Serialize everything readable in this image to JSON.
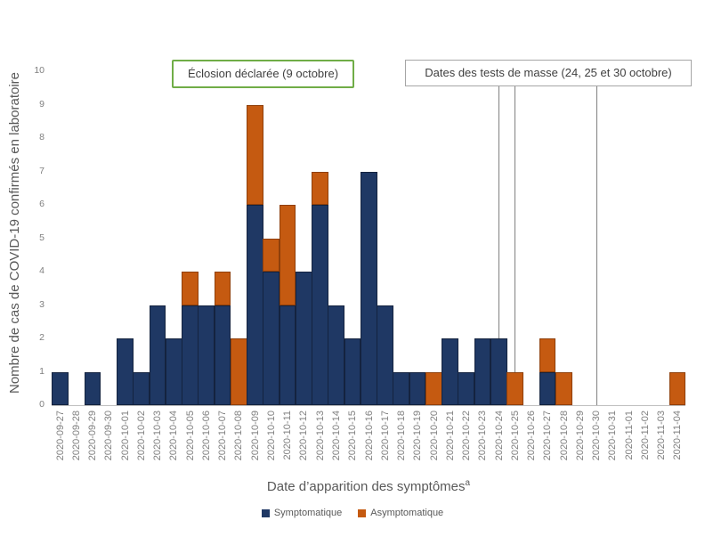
{
  "chart_data": {
    "type": "bar",
    "stacked": true,
    "title": "",
    "xlabel": "Date d’apparition des symptômes",
    "xlabel_superscript": "a",
    "ylabel": "Nombre de cas de COVID-19 confirmés en laboratoire",
    "ylim": [
      0,
      10
    ],
    "yticks": [
      0,
      1,
      2,
      3,
      4,
      5,
      6,
      7,
      8,
      9,
      10
    ],
    "grid": false,
    "legend_position": "bottom",
    "categories": [
      "2020-09-27",
      "2020-09-28",
      "2020-09-29",
      "2020-09-30",
      "2020-10-01",
      "2020-10-02",
      "2020-10-03",
      "2020-10-04",
      "2020-10-05",
      "2020-10-06",
      "2020-10-07",
      "2020-10-08",
      "2020-10-09",
      "2020-10-10",
      "2020-10-11",
      "2020-10-12",
      "2020-10-13",
      "2020-10-14",
      "2020-10-15",
      "2020-10-16",
      "2020-10-17",
      "2020-10-18",
      "2020-10-19",
      "2020-10-20",
      "2020-10-21",
      "2020-10-22",
      "2020-10-23",
      "2020-10-24",
      "2020-10-25",
      "2020-10-26",
      "2020-10-27",
      "2020-10-28",
      "2020-10-29",
      "2020-10-30",
      "2020-10-31",
      "2020-11-01",
      "2020-11-02",
      "2020-11-03",
      "2020-11-04"
    ],
    "series": [
      {
        "name": "Symptomatique",
        "color": "#1F3864",
        "border_color": "#14233F",
        "values": [
          1,
          0,
          1,
          0,
          2,
          1,
          3,
          2,
          3,
          3,
          3,
          0,
          6,
          4,
          3,
          4,
          6,
          3,
          2,
          7,
          3,
          1,
          1,
          0,
          2,
          1,
          2,
          2,
          0,
          0,
          1,
          0,
          0,
          0,
          0,
          0,
          0,
          0,
          0
        ]
      },
      {
        "name": "Asymptomatique",
        "color": "#C55A11",
        "border_color": "#8F3F0A",
        "values": [
          0,
          0,
          0,
          0,
          0,
          0,
          0,
          0,
          1,
          0,
          1,
          2,
          3,
          1,
          3,
          0,
          1,
          0,
          0,
          0,
          0,
          0,
          0,
          1,
          0,
          0,
          0,
          0,
          1,
          0,
          1,
          1,
          0,
          0,
          0,
          0,
          0,
          0,
          1
        ]
      }
    ],
    "annotations": [
      {
        "id": "outbreak",
        "text": "Éclosion déclarée (9 octobre)",
        "border_color": "#70AD47",
        "target_dates": [
          "2020-10-09"
        ],
        "has_lines": false,
        "line_color": "#808080"
      },
      {
        "id": "mass-tests",
        "text": "Dates des tests de masse (24, 25 et 30 octobre)",
        "border_color": "#A6A6A6",
        "target_dates": [
          "2020-10-24",
          "2020-10-25",
          "2020-10-30"
        ],
        "has_lines": true,
        "line_color": "#808080"
      }
    ]
  }
}
